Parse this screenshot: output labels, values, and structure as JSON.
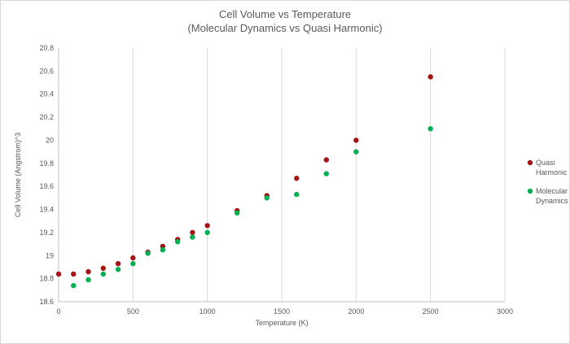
{
  "chart_data": {
    "type": "scatter",
    "title_line1": "Cell Volume vs Temperature",
    "title_line2": "(Molecular Dynamics vs Quasi Harmonic)",
    "xlabel": "Temperature (K)",
    "ylabel": "Cell Volume (Angstrom)^3",
    "xlim": [
      0,
      3000
    ],
    "ylim": [
      18.6,
      20.8
    ],
    "x_ticks": [
      "0",
      "500",
      "1000",
      "1500",
      "2000",
      "2500",
      "3000"
    ],
    "x_tick_values": [
      0,
      500,
      1000,
      1500,
      2000,
      2500,
      3000
    ],
    "y_ticks": [
      "18.6",
      "18.8",
      "19",
      "19.2",
      "19.4",
      "19.6",
      "19.8",
      "20",
      "20.2",
      "20.4",
      "20.6",
      "20.8"
    ],
    "y_tick_values": [
      18.6,
      18.8,
      19.0,
      19.2,
      19.4,
      19.6,
      19.8,
      20.0,
      20.2,
      20.4,
      20.6,
      20.8
    ],
    "grid": "vertical",
    "legend_position": "right",
    "series": [
      {
        "name_line1": "Quasi",
        "name_line2": "Harmonic",
        "color": "#a31515",
        "points": [
          [
            0,
            18.84
          ],
          [
            100,
            18.84
          ],
          [
            200,
            18.86
          ],
          [
            300,
            18.89
          ],
          [
            400,
            18.93
          ],
          [
            500,
            18.98
          ],
          [
            600,
            19.03
          ],
          [
            700,
            19.08
          ],
          [
            800,
            19.14
          ],
          [
            900,
            19.2
          ],
          [
            1000,
            19.26
          ],
          [
            1200,
            19.39
          ],
          [
            1400,
            19.52
          ],
          [
            1600,
            19.67
          ],
          [
            1800,
            19.83
          ],
          [
            2000,
            20.0
          ],
          [
            2500,
            20.55
          ]
        ]
      },
      {
        "name_line1": "Molecular",
        "name_line2": "Dynamics",
        "color": "#00b050",
        "points": [
          [
            100,
            18.74
          ],
          [
            200,
            18.79
          ],
          [
            300,
            18.84
          ],
          [
            400,
            18.88
          ],
          [
            500,
            18.93
          ],
          [
            600,
            19.02
          ],
          [
            700,
            19.05
          ],
          [
            800,
            19.12
          ],
          [
            900,
            19.16
          ],
          [
            1000,
            19.2
          ],
          [
            1200,
            19.37
          ],
          [
            1400,
            19.5
          ],
          [
            1600,
            19.53
          ],
          [
            1800,
            19.71
          ],
          [
            2000,
            19.9
          ],
          [
            2500,
            20.1
          ]
        ]
      }
    ]
  }
}
